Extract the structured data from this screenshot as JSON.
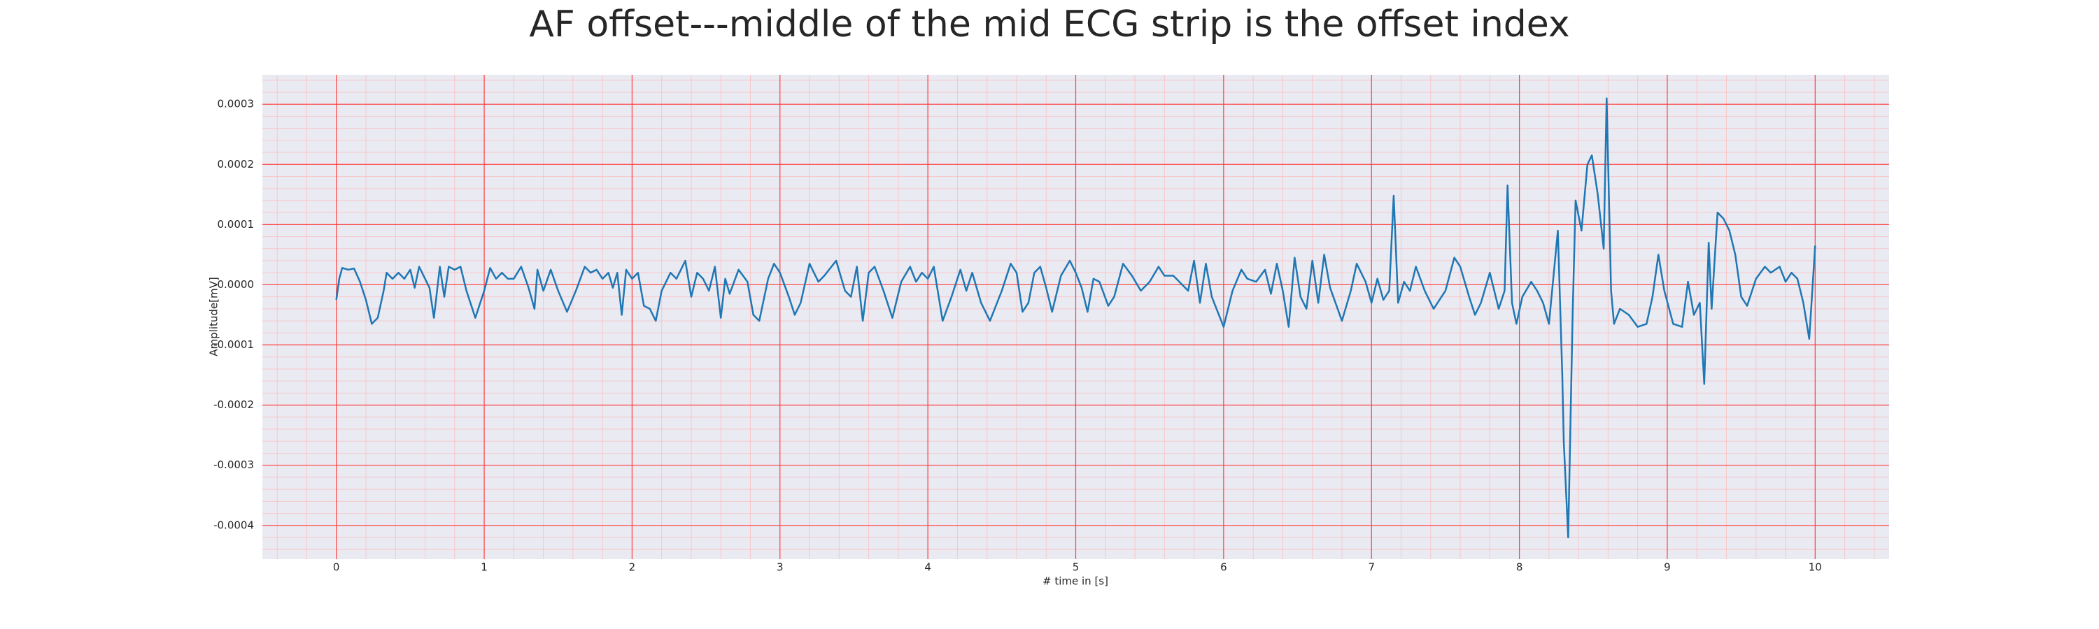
{
  "chart_data": {
    "type": "line",
    "title": "AF offset---middle of the mid ECG strip is the offset index",
    "x_label": "# time in [s]",
    "y_label": "Amplitude[mV]",
    "color": "#1f77b4",
    "grid": true,
    "minor_grid": true,
    "xlim": [
      -0.5,
      10.5
    ],
    "xticks": [
      0,
      1,
      2,
      3,
      4,
      5,
      6,
      7,
      8,
      9,
      10
    ],
    "ylim": [
      -0.000456,
      0.000349
    ],
    "yticks": [
      0.0003,
      0.0002,
      0.0001,
      {
        "value": 0,
        "label": "0.0000"
      },
      -0.0001,
      -0.0002,
      -0.0003,
      -0.0004
    ],
    "x": [
      0.0,
      0.02,
      0.04,
      0.08,
      0.12,
      0.16,
      0.2,
      0.24,
      0.28,
      0.32,
      0.34,
      0.38,
      0.42,
      0.46,
      0.5,
      0.53,
      0.56,
      0.6,
      0.63,
      0.66,
      0.7,
      0.73,
      0.76,
      0.8,
      0.84,
      0.88,
      0.94,
      1.0,
      1.04,
      1.08,
      1.12,
      1.16,
      1.2,
      1.25,
      1.3,
      1.34,
      1.36,
      1.4,
      1.45,
      1.5,
      1.56,
      1.62,
      1.68,
      1.72,
      1.76,
      1.8,
      1.84,
      1.87,
      1.9,
      1.93,
      1.96,
      2.0,
      2.04,
      2.08,
      2.12,
      2.16,
      2.2,
      2.26,
      2.3,
      2.36,
      2.4,
      2.44,
      2.48,
      2.52,
      2.56,
      2.6,
      2.63,
      2.66,
      2.72,
      2.78,
      2.82,
      2.86,
      2.92,
      2.96,
      3.0,
      3.06,
      3.1,
      3.14,
      3.2,
      3.26,
      3.3,
      3.38,
      3.44,
      3.48,
      3.52,
      3.56,
      3.6,
      3.64,
      3.7,
      3.76,
      3.82,
      3.88,
      3.92,
      3.96,
      4.0,
      4.04,
      4.1,
      4.16,
      4.22,
      4.26,
      4.3,
      4.36,
      4.42,
      4.5,
      4.56,
      4.6,
      4.64,
      4.68,
      4.72,
      4.76,
      4.8,
      4.84,
      4.9,
      4.96,
      5.0,
      5.04,
      5.08,
      5.12,
      5.16,
      5.22,
      5.26,
      5.32,
      5.38,
      5.44,
      5.5,
      5.56,
      5.6,
      5.66,
      5.7,
      5.76,
      5.8,
      5.84,
      5.88,
      5.92,
      6.0,
      6.06,
      6.12,
      6.16,
      6.22,
      6.28,
      6.32,
      6.36,
      6.4,
      6.44,
      6.48,
      6.52,
      6.56,
      6.6,
      6.64,
      6.68,
      6.72,
      6.8,
      6.86,
      6.9,
      6.96,
      7.0,
      7.04,
      7.08,
      7.12,
      7.15,
      7.18,
      7.22,
      7.26,
      7.3,
      7.36,
      7.42,
      7.5,
      7.56,
      7.6,
      7.66,
      7.7,
      7.74,
      7.8,
      7.86,
      7.9,
      7.92,
      7.95,
      7.98,
      8.02,
      8.08,
      8.12,
      8.16,
      8.2,
      8.26,
      8.29,
      8.3,
      8.33,
      8.36,
      8.38,
      8.42,
      8.46,
      8.49,
      8.53,
      8.57,
      8.59,
      8.62,
      8.64,
      8.68,
      8.74,
      8.8,
      8.86,
      8.9,
      8.94,
      8.98,
      9.04,
      9.1,
      9.14,
      9.18,
      9.22,
      9.25,
      9.28,
      9.3,
      9.34,
      9.38,
      9.42,
      9.46,
      9.5,
      9.54,
      9.6,
      9.66,
      9.7,
      9.76,
      9.8,
      9.84,
      9.88,
      9.92,
      9.96,
      10.0
    ],
    "values": [
      -2.5e-05,
      1e-05,
      2.8e-05,
      2.5e-05,
      2.7e-05,
      5e-06,
      -2.5e-05,
      -6.5e-05,
      -5.5e-05,
      -1e-05,
      2e-05,
      1e-05,
      2e-05,
      1e-05,
      2.5e-05,
      -5e-06,
      3e-05,
      1e-05,
      -5e-06,
      -5.5e-05,
      3e-05,
      -2e-05,
      3e-05,
      2.5e-05,
      3e-05,
      -1e-05,
      -5.5e-05,
      -1e-05,
      2.8e-05,
      1e-05,
      2e-05,
      1e-05,
      1e-05,
      3e-05,
      -5e-06,
      -4e-05,
      2.5e-05,
      -1e-05,
      2.5e-05,
      -1e-05,
      -4.5e-05,
      -1e-05,
      3e-05,
      2e-05,
      2.5e-05,
      1e-05,
      2e-05,
      -5e-06,
      2e-05,
      -5e-05,
      2.5e-05,
      1e-05,
      2e-05,
      -3.5e-05,
      -4e-05,
      -6e-05,
      -1e-05,
      2e-05,
      1e-05,
      4e-05,
      -2e-05,
      2e-05,
      1e-05,
      -1e-05,
      3e-05,
      -5.5e-05,
      1e-05,
      -1.5e-05,
      2.5e-05,
      5e-06,
      -5e-05,
      -6e-05,
      1e-05,
      3.5e-05,
      2e-05,
      -2e-05,
      -5e-05,
      -3e-05,
      3.5e-05,
      5e-06,
      1.5e-05,
      4e-05,
      -1e-05,
      -2e-05,
      3e-05,
      -6e-05,
      2e-05,
      3e-05,
      -1e-05,
      -5.5e-05,
      5e-06,
      3e-05,
      5e-06,
      2e-05,
      1e-05,
      3e-05,
      -6e-05,
      -2e-05,
      2.5e-05,
      -1e-05,
      2e-05,
      -3e-05,
      -6e-05,
      -1e-05,
      3.5e-05,
      2e-05,
      -4.5e-05,
      -3e-05,
      2e-05,
      3e-05,
      -5e-06,
      -4.5e-05,
      1.5e-05,
      4e-05,
      2e-05,
      -5e-06,
      -4.5e-05,
      1e-05,
      5e-06,
      -3.5e-05,
      -2e-05,
      3.5e-05,
      1.5e-05,
      -1e-05,
      5e-06,
      3e-05,
      1.5e-05,
      1.5e-05,
      5e-06,
      -1e-05,
      4e-05,
      -3e-05,
      3.5e-05,
      -2e-05,
      -7e-05,
      -1e-05,
      2.5e-05,
      1e-05,
      5e-06,
      2.5e-05,
      -1.5e-05,
      3.5e-05,
      -1e-05,
      -7e-05,
      4.5e-05,
      -2e-05,
      -4e-05,
      4e-05,
      -3e-05,
      5e-05,
      -5e-06,
      -6e-05,
      -1e-05,
      3.5e-05,
      5e-06,
      -3e-05,
      1e-05,
      -2.5e-05,
      -1e-05,
      0.000148,
      -3e-05,
      5e-06,
      -1e-05,
      3e-05,
      -1e-05,
      -4e-05,
      -1e-05,
      4.5e-05,
      3e-05,
      -2e-05,
      -5e-05,
      -3e-05,
      2e-05,
      -4e-05,
      -1e-05,
      0.000165,
      -3e-05,
      -6.5e-05,
      -2e-05,
      5e-06,
      -1e-05,
      -3e-05,
      -6.5e-05,
      9e-05,
      -0.00015,
      -0.00026,
      -0.00042,
      -5e-05,
      0.00014,
      9e-05,
      0.0002,
      0.000215,
      0.00015,
      6e-05,
      0.00031,
      -1e-05,
      -6.5e-05,
      -4e-05,
      -5e-05,
      -7e-05,
      -6.5e-05,
      -2e-05,
      5e-05,
      -1e-05,
      -6.5e-05,
      -7e-05,
      5e-06,
      -5e-05,
      -3e-05,
      -0.000165,
      7e-05,
      -4e-05,
      0.00012,
      0.00011,
      9e-05,
      5e-05,
      -2e-05,
      -3.5e-05,
      1e-05,
      3e-05,
      2e-05,
      3e-05,
      5e-06,
      2e-05,
      1e-05,
      -3e-05,
      -9e-05,
      6.5e-05
    ]
  }
}
